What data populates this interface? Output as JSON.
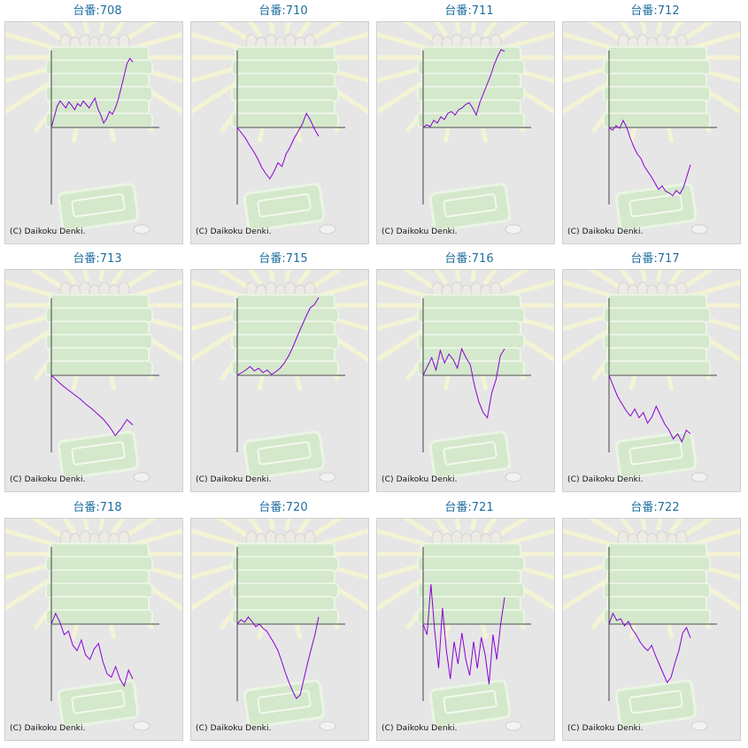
{
  "copyright": "(C) Daikoku Denki.",
  "colors": {
    "line": "#8a00d6",
    "title": "#1f6fa0",
    "axis": "#444444",
    "background": "#e6e6e6"
  },
  "charts": [
    {
      "title": "台番:708",
      "values": [
        0,
        12,
        24,
        30,
        26,
        22,
        29,
        25,
        20,
        27,
        24,
        30,
        26,
        22,
        28,
        33,
        21,
        14,
        5,
        10,
        18,
        15,
        22,
        32,
        45,
        58,
        72,
        78,
        74
      ]
    },
    {
      "title": "台番:710",
      "values": [
        0,
        -6,
        -12,
        -20,
        -27,
        -35,
        -45,
        -52,
        -58,
        -50,
        -40,
        -44,
        -30,
        -22,
        -12,
        -4,
        4,
        16,
        8,
        -2,
        -10
      ]
    },
    {
      "title": "台番:711",
      "values": [
        0,
        3,
        1,
        8,
        5,
        12,
        9,
        16,
        18,
        14,
        20,
        22,
        26,
        28,
        22,
        14,
        28,
        38,
        48,
        58,
        70,
        80,
        88,
        86
      ]
    },
    {
      "title": "台番:712",
      "values": [
        0,
        -3,
        2,
        -1,
        8,
        0,
        -12,
        -22,
        -30,
        -35,
        -44,
        -50,
        -56,
        -63,
        -70,
        -66,
        -72,
        -74,
        -77,
        -71,
        -75,
        -68,
        -55,
        -42
      ]
    },
    {
      "title": "台番:713",
      "values": [
        0,
        -6,
        -12,
        -17,
        -22,
        -27,
        -33,
        -38,
        -44,
        -50,
        -58,
        -68,
        -60,
        -50,
        -56
      ]
    },
    {
      "title": "台番:715",
      "values": [
        0,
        3,
        6,
        10,
        5,
        8,
        3,
        6,
        1,
        4,
        8,
        14,
        22,
        32,
        44,
        55,
        66,
        76,
        80,
        88
      ]
    },
    {
      "title": "台番:716",
      "values": [
        0,
        10,
        20,
        6,
        28,
        14,
        24,
        18,
        8,
        30,
        20,
        12,
        -12,
        -30,
        -42,
        -48,
        -20,
        -5,
        22,
        30
      ]
    },
    {
      "title": "台番:717",
      "values": [
        0,
        -12,
        -24,
        -32,
        -40,
        -46,
        -38,
        -48,
        -42,
        -54,
        -47,
        -35,
        -45,
        -55,
        -62,
        -72,
        -66,
        -75,
        -62,
        -66
      ]
    },
    {
      "title": "台番:718",
      "values": [
        0,
        12,
        2,
        -12,
        -8,
        -24,
        -30,
        -18,
        -35,
        -40,
        -28,
        -22,
        -42,
        -56,
        -60,
        -48,
        -62,
        -70,
        -52,
        -62
      ]
    },
    {
      "title": "台番:720",
      "values": [
        0,
        5,
        2,
        8,
        3,
        -3,
        0,
        -5,
        -8,
        -15,
        -22,
        -30,
        -42,
        -55,
        -66,
        -76,
        -84,
        -80,
        -62,
        -44,
        -28,
        -12,
        8
      ]
    },
    {
      "title": "台番:721",
      "values": [
        0,
        -12,
        45,
        -8,
        -50,
        18,
        -30,
        -62,
        -20,
        -45,
        -10,
        -40,
        -58,
        -20,
        -50,
        -15,
        -35,
        -68,
        -12,
        -40,
        0,
        30
      ]
    },
    {
      "title": "台番:722",
      "values": [
        0,
        12,
        4,
        6,
        -2,
        3,
        -6,
        -12,
        -20,
        -26,
        -30,
        -24,
        -36,
        -46,
        -56,
        -66,
        -60,
        -44,
        -30,
        -10,
        -4,
        -16
      ]
    }
  ]
}
